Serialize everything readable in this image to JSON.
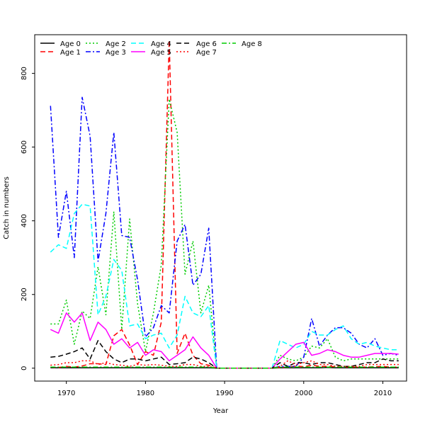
{
  "chart_data": {
    "type": "line",
    "title": "",
    "xlabel": "Year",
    "ylabel": "Catch in numbers",
    "xlim": [
      1966,
      2013
    ],
    "ylim": [
      -35,
      905
    ],
    "xticks": [
      1970,
      1980,
      1990,
      2000,
      2010
    ],
    "yticks": [
      0,
      200,
      400,
      600,
      800
    ],
    "legend_position": "top-left",
    "x": [
      1968,
      1969,
      1970,
      1971,
      1972,
      1973,
      1974,
      1975,
      1976,
      1977,
      1978,
      1979,
      1980,
      1981,
      1982,
      1983,
      1984,
      1985,
      1986,
      1987,
      1988,
      1989,
      1990,
      1991,
      1992,
      1993,
      1994,
      1995,
      1996,
      1997,
      1998,
      1999,
      2000,
      2001,
      2002,
      2003,
      2004,
      2005,
      2006,
      2007,
      2008,
      2009,
      2010,
      2011,
      2012
    ],
    "series": [
      {
        "name": "Age 0",
        "color": "#000000",
        "dash": "solid",
        "values": [
          1,
          1,
          1,
          1,
          1,
          1,
          1,
          1,
          1,
          1,
          1,
          1,
          1,
          1,
          1,
          1,
          1,
          1,
          1,
          1,
          1,
          0,
          0,
          0,
          0,
          0,
          0,
          0,
          0,
          1,
          1,
          1,
          1,
          1,
          1,
          2,
          1,
          1,
          1,
          1,
          1,
          1,
          1,
          1,
          1
        ]
      },
      {
        "name": "Age 1",
        "color": "#ff0000",
        "dash": "longdash",
        "values": [
          3,
          2,
          5,
          3,
          6,
          12,
          12,
          10,
          88,
          105,
          63,
          10,
          45,
          35,
          125,
          890,
          40,
          95,
          35,
          12,
          8,
          0,
          0,
          0,
          0,
          0,
          0,
          0,
          0,
          2,
          3,
          6,
          4,
          8,
          5,
          5,
          4,
          3,
          3,
          3,
          3,
          4,
          5,
          3,
          3
        ]
      },
      {
        "name": "Age 2",
        "color": "#00cc00",
        "dash": "dotted",
        "values": [
          120,
          120,
          185,
          65,
          155,
          135,
          275,
          145,
          425,
          105,
          405,
          175,
          45,
          150,
          280,
          730,
          640,
          255,
          345,
          150,
          225,
          0,
          0,
          0,
          0,
          0,
          0,
          0,
          0,
          35,
          25,
          20,
          30,
          60,
          55,
          80,
          30,
          20,
          25,
          25,
          25,
          25,
          25,
          25,
          25
        ]
      },
      {
        "name": "Age 3",
        "color": "#0000ff",
        "dash": "dotdash",
        "values": [
          712,
          355,
          480,
          300,
          735,
          630,
          290,
          420,
          640,
          360,
          355,
          240,
          85,
          110,
          170,
          150,
          345,
          390,
          225,
          255,
          380,
          0,
          0,
          0,
          0,
          0,
          0,
          0,
          0,
          5,
          5,
          5,
          30,
          135,
          60,
          90,
          110,
          110,
          95,
          65,
          55,
          80,
          35,
          40,
          35
        ]
      },
      {
        "name": "Age 4",
        "color": "#00ffff",
        "dash": "longdash",
        "values": [
          315,
          335,
          325,
          420,
          445,
          440,
          145,
          195,
          295,
          265,
          115,
          120,
          80,
          90,
          95,
          55,
          90,
          195,
          150,
          140,
          170,
          0,
          0,
          0,
          0,
          0,
          0,
          0,
          0,
          75,
          65,
          55,
          65,
          100,
          90,
          90,
          105,
          115,
          80,
          65,
          70,
          60,
          55,
          50,
          50
        ]
      },
      {
        "name": "Age 5",
        "color": "#ff00ff",
        "dash": "solid",
        "values": [
          105,
          95,
          150,
          125,
          150,
          75,
          125,
          105,
          65,
          80,
          55,
          70,
          35,
          50,
          45,
          20,
          35,
          50,
          85,
          55,
          35,
          0,
          0,
          0,
          0,
          0,
          0,
          0,
          0,
          25,
          45,
          65,
          70,
          35,
          40,
          50,
          45,
          35,
          30,
          30,
          35,
          40,
          40,
          40,
          38
        ]
      },
      {
        "name": "Age 6",
        "color": "#000000",
        "dash": "longdash",
        "values": [
          30,
          32,
          38,
          45,
          55,
          25,
          75,
          45,
          25,
          15,
          25,
          25,
          20,
          25,
          30,
          10,
          12,
          15,
          30,
          25,
          15,
          0,
          0,
          0,
          0,
          0,
          0,
          0,
          0,
          15,
          5,
          15,
          15,
          10,
          15,
          15,
          10,
          5,
          5,
          10,
          15,
          15,
          25,
          20,
          20
        ]
      },
      {
        "name": "Age 7",
        "color": "#ff0000",
        "dash": "dotted",
        "values": [
          8,
          10,
          15,
          15,
          20,
          20,
          10,
          15,
          10,
          8,
          5,
          10,
          8,
          10,
          8,
          5,
          5,
          10,
          10,
          5,
          5,
          0,
          0,
          0,
          0,
          0,
          0,
          0,
          0,
          5,
          20,
          10,
          15,
          20,
          10,
          10,
          5,
          5,
          5,
          5,
          10,
          10,
          10,
          10,
          10
        ]
      },
      {
        "name": "Age 8",
        "color": "#00cc00",
        "dash": "dotdash",
        "values": [
          3,
          3,
          3,
          3,
          3,
          3,
          3,
          3,
          3,
          3,
          3,
          3,
          3,
          3,
          3,
          3,
          3,
          3,
          3,
          3,
          3,
          0,
          0,
          0,
          0,
          0,
          0,
          0,
          0,
          3,
          3,
          3,
          3,
          3,
          3,
          3,
          3,
          3,
          3,
          3,
          3,
          3,
          3,
          3,
          3
        ]
      }
    ]
  }
}
